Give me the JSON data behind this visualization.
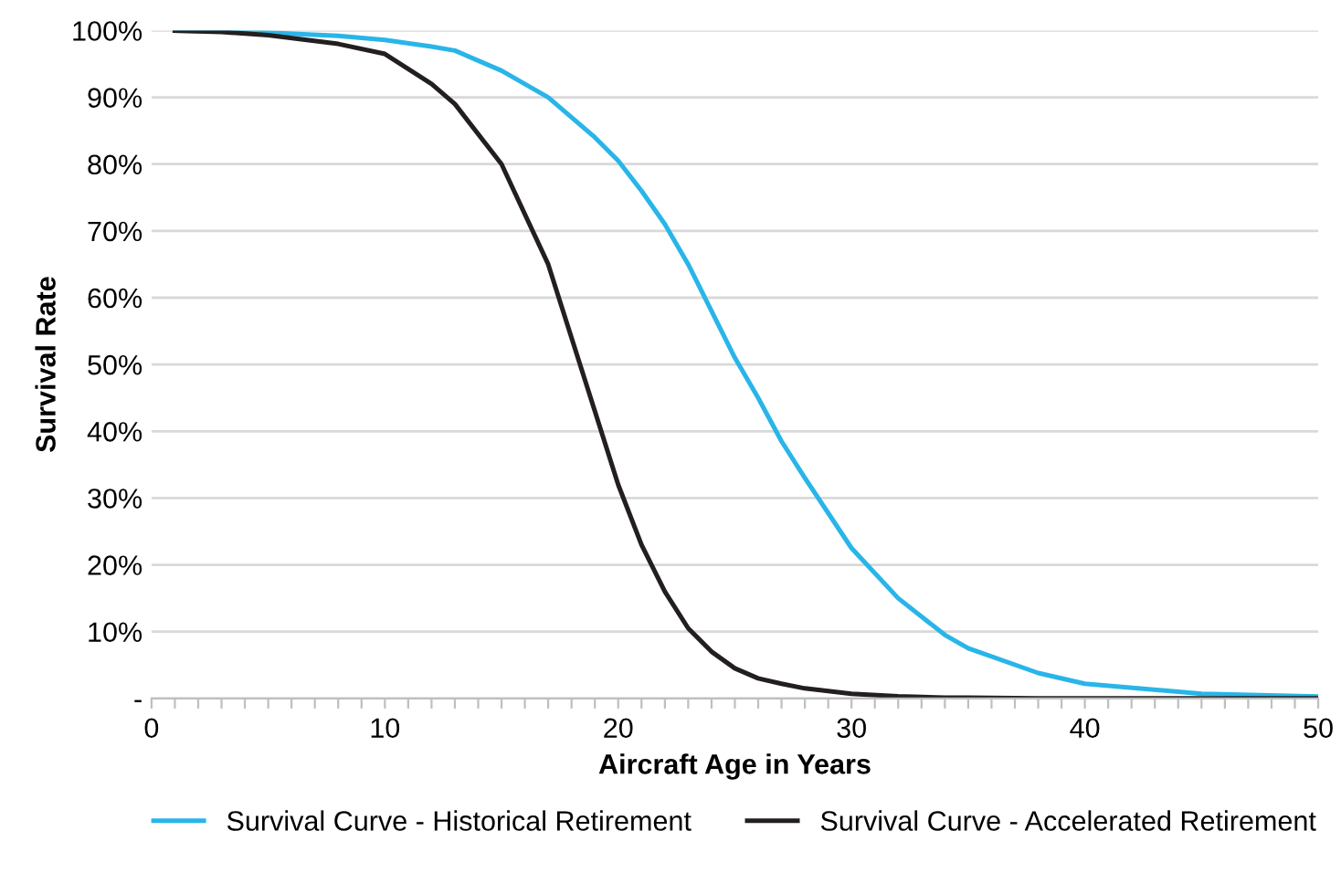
{
  "chart_data": {
    "type": "line",
    "xlabel": "Aircraft Age in Years",
    "ylabel": "Survival Rate",
    "x": [
      1,
      3,
      5,
      8,
      10,
      12,
      13,
      15,
      17,
      19,
      20,
      21,
      22,
      23,
      24,
      25,
      26,
      27,
      28,
      30,
      32,
      34,
      35,
      38,
      40,
      45,
      50
    ],
    "series": [
      {
        "name": "Survival Curve - Historical Retirement",
        "color": "#29b5e8",
        "values": [
          100,
          99.9,
          99.7,
          99.2,
          98.6,
          97.6,
          97,
          94,
          90,
          84,
          80.5,
          76,
          71,
          65,
          58,
          51,
          45,
          38.5,
          33,
          22.5,
          15,
          9.5,
          7.5,
          3.8,
          2.2,
          0.7,
          0.3
        ]
      },
      {
        "name": "Survival Curve - Accelerated Retirement",
        "color": "#231f20",
        "values": [
          100,
          99.8,
          99.3,
          98,
          96.5,
          92,
          89,
          80,
          65,
          43,
          32,
          23,
          16,
          10.5,
          7,
          4.5,
          3,
          2.2,
          1.5,
          0.7,
          0.3,
          0.1,
          0.1,
          0,
          0,
          0,
          0
        ]
      }
    ],
    "xlim": [
      0,
      50
    ],
    "xticks": [
      0,
      {
        "value": 1,
        "label": null
      },
      {
        "value": 2,
        "label": null
      },
      {
        "value": 3,
        "label": null
      },
      {
        "value": 4,
        "label": null
      },
      {
        "value": 5,
        "label": null
      },
      {
        "value": 6,
        "label": null
      },
      {
        "value": 7,
        "label": null
      },
      {
        "value": 8,
        "label": null
      },
      {
        "value": 9,
        "label": null
      },
      10,
      {
        "value": 11,
        "label": null
      },
      {
        "value": 12,
        "label": null
      },
      {
        "value": 13,
        "label": null
      },
      {
        "value": 14,
        "label": null
      },
      {
        "value": 15,
        "label": null
      },
      {
        "value": 16,
        "label": null
      },
      {
        "value": 17,
        "label": null
      },
      {
        "value": 18,
        "label": null
      },
      {
        "value": 19,
        "label": null
      },
      20,
      {
        "value": 21,
        "label": null
      },
      {
        "value": 22,
        "label": null
      },
      {
        "value": 23,
        "label": null
      },
      {
        "value": 24,
        "label": null
      },
      {
        "value": 25,
        "label": null
      },
      {
        "value": 26,
        "label": null
      },
      {
        "value": 27,
        "label": null
      },
      {
        "value": 28,
        "label": null
      },
      {
        "value": 29,
        "label": null
      },
      30,
      {
        "value": 31,
        "label": null
      },
      {
        "value": 32,
        "label": null
      },
      {
        "value": 33,
        "label": null
      },
      {
        "value": 34,
        "label": null
      },
      {
        "value": 35,
        "label": null
      },
      {
        "value": 36,
        "label": null
      },
      {
        "value": 37,
        "label": null
      },
      {
        "value": 38,
        "label": null
      },
      {
        "value": 39,
        "label": null
      },
      40,
      {
        "value": 41,
        "label": null
      },
      {
        "value": 42,
        "label": null
      },
      {
        "value": 43,
        "label": null
      },
      {
        "value": 44,
        "label": null
      },
      {
        "value": 45,
        "label": null
      },
      {
        "value": 46,
        "label": null
      },
      {
        "value": 47,
        "label": null
      },
      {
        "value": 48,
        "label": null
      },
      {
        "value": 49,
        "label": null
      },
      50
    ],
    "ylim": [
      0,
      100
    ],
    "yticks": [
      {
        "value": 0,
        "label": "-"
      },
      {
        "value": 10,
        "label": "10%"
      },
      {
        "value": 20,
        "label": "20%"
      },
      {
        "value": 30,
        "label": "30%"
      },
      {
        "value": 40,
        "label": "40%"
      },
      {
        "value": 50,
        "label": "50%"
      },
      {
        "value": 60,
        "label": "60%"
      },
      {
        "value": 70,
        "label": "70%"
      },
      {
        "value": 80,
        "label": "80%"
      },
      {
        "value": 90,
        "label": "90%"
      },
      {
        "value": 100,
        "label": "100%"
      }
    ],
    "grid": "y",
    "legend": "bottom",
    "marker": "none",
    "line_style": "solid"
  }
}
